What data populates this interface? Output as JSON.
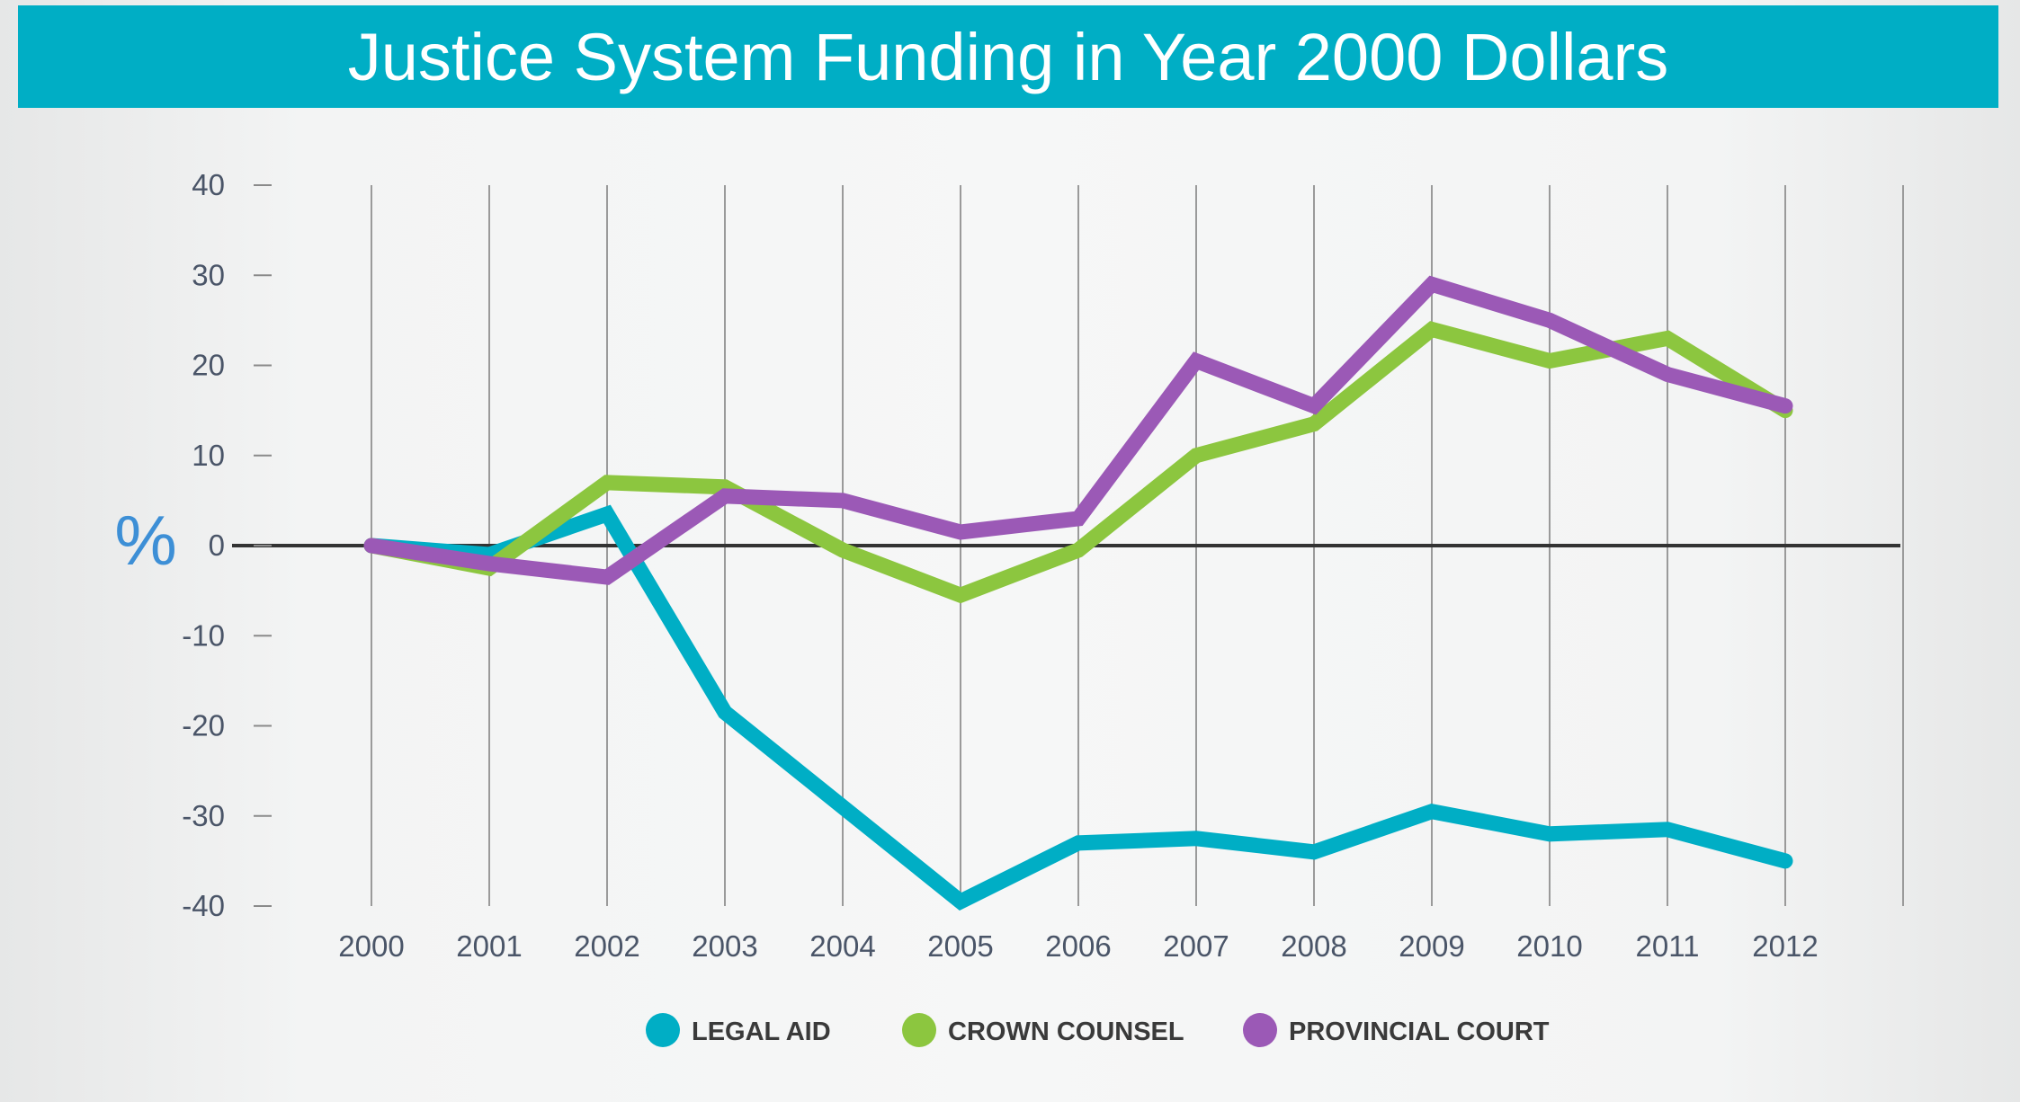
{
  "chart_data": {
    "type": "line",
    "title": "Justice System Funding in Year 2000 Dollars",
    "ylabel": "%",
    "xlabel": "",
    "ylim": [
      -40,
      40
    ],
    "y_ticks": [
      "40",
      "30",
      "20",
      "10",
      "0",
      "-10",
      "-20",
      "-30",
      "-40"
    ],
    "categories": [
      "2000",
      "2001",
      "2002",
      "2003",
      "2004",
      "2005",
      "2006",
      "2007",
      "2008",
      "2009",
      "2010",
      "2011",
      "2012"
    ],
    "series": [
      {
        "name": "LEGAL AID",
        "color": "#00aec5",
        "values": [
          0,
          -1,
          3.5,
          -18.5,
          -29,
          -39.5,
          -33,
          -32.5,
          -34,
          -29.5,
          -32,
          -31.5,
          -35
        ]
      },
      {
        "name": "CROWN COUNSEL",
        "color": "#8cc63f",
        "values": [
          0,
          -2.5,
          7,
          6.5,
          -0.5,
          -5.5,
          -0.5,
          10,
          13.5,
          24,
          20.5,
          23,
          15
        ]
      },
      {
        "name": "PROVINCIAL COURT",
        "color": "#9b59b6",
        "values": [
          0,
          -2,
          -3.5,
          5.5,
          5,
          1.5,
          3,
          20.5,
          15.5,
          29,
          25,
          19,
          15.5
        ]
      }
    ],
    "legend_position": "bottom-center",
    "grid": true
  }
}
